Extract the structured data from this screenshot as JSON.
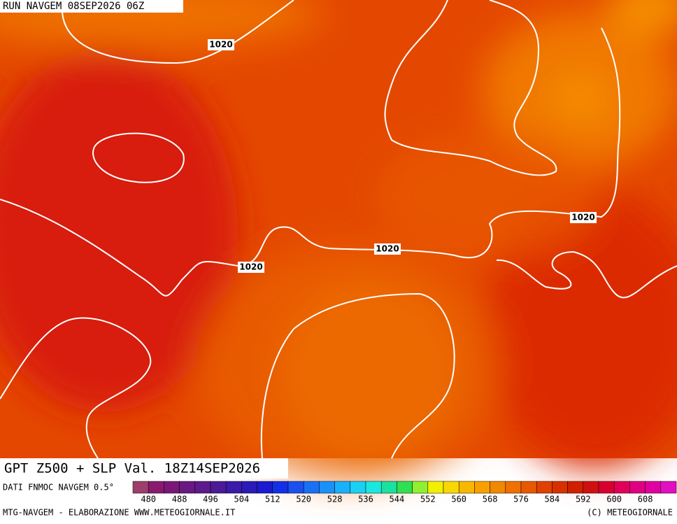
{
  "header": "RUN NAVGEM 08SEP2026 06Z",
  "isobar_labels": [
    "1020",
    "1020",
    "1020",
    "1020"
  ],
  "title": "GPT Z500 + SLP Val. 18Z14SEP2026",
  "source": "DATI FNMOC NAVGEM 0.5°",
  "colorbar": {
    "ticks": [
      480,
      488,
      496,
      504,
      512,
      520,
      528,
      536,
      544,
      552,
      560,
      568,
      576,
      584,
      592,
      600,
      608
    ],
    "colors": [
      "#9c3f6a",
      "#8a1a6e",
      "#7a1878",
      "#6a1882",
      "#5c1a8c",
      "#4b1a96",
      "#3a1aa8",
      "#2a1ab8",
      "#1a1ad0",
      "#1430e6",
      "#1a50f0",
      "#1a70f5",
      "#1a90f8",
      "#1ab0fa",
      "#1ad0f5",
      "#1ae8e0",
      "#1ae0a0",
      "#30e050",
      "#90f030",
      "#f0f000",
      "#f8d800",
      "#f8b800",
      "#f8a000",
      "#f08800",
      "#f07000",
      "#e85800",
      "#e04000",
      "#d83000",
      "#d02000",
      "#d01010",
      "#d80030",
      "#e0005a",
      "#e00080",
      "#e000a0",
      "#e010c0"
    ]
  },
  "footer_left": "MTG-NAVGEM - ELABORAZIONE WWW.METEOGIORNALE.IT",
  "footer_right": "(C) METEOGIORNALE"
}
